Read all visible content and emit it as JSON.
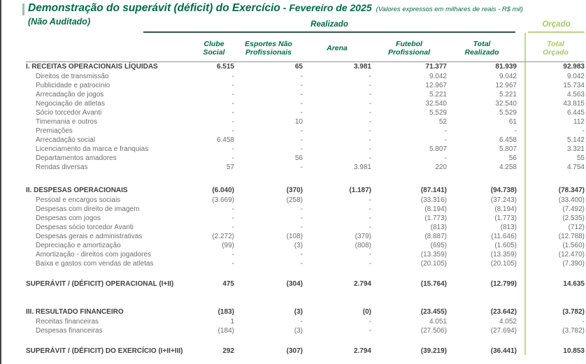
{
  "header": {
    "title": "Demonstração do superávit (déficit) do Exercício",
    "period": " - Fevereiro de 2025",
    "note": "(Valores expressos em milhares de reais - R$ mil)",
    "unaudited": "(Não Auditado)",
    "realizado_label": "Realizado",
    "orcado_label": "Orçado"
  },
  "colors": {
    "green_dark": "#006b45",
    "green_light": "#a6ca65",
    "text_dark": "#3f4042",
    "text_gray": "#6d6e71",
    "line_gray": "#909295"
  },
  "columns": [
    "Clube Social",
    "Esportes Não\nProfissionais",
    "Arena",
    "Futebol\nProfissional",
    "Total\nRealizado",
    "Total\nOrçado"
  ],
  "rows": [
    {
      "type": "section",
      "label": "I. RECEITAS OPERACIONAIS LÍQUIDAS",
      "values": [
        "6.515",
        "65",
        "3.981",
        "71.377",
        "81.939",
        "92.983"
      ]
    },
    {
      "type": "sub",
      "label": "Direitos de transmissão",
      "values": [
        "-",
        "-",
        "-",
        "9.042",
        "9.042",
        "9.042"
      ]
    },
    {
      "type": "sub",
      "label": "Publicidade e patrocinio",
      "values": [
        "-",
        "-",
        "-",
        "12.967",
        "12.967",
        "15.734"
      ]
    },
    {
      "type": "sub",
      "label": "Arrecadação de jogos",
      "values": [
        "-",
        "-",
        "-",
        "5.221",
        "5.221",
        "4.563"
      ]
    },
    {
      "type": "sub",
      "label": "Negociação de atletas",
      "values": [
        "-",
        "-",
        "-",
        "32.540",
        "32.540",
        "43.815"
      ]
    },
    {
      "type": "sub",
      "label": "Sócio torcedor Avanti",
      "values": [
        "-",
        "-",
        "-",
        "5.529",
        "5.529",
        "6.445"
      ]
    },
    {
      "type": "sub",
      "label": "Timemania e outros",
      "values": [
        "-",
        "10",
        "-",
        "52",
        "61",
        "112"
      ]
    },
    {
      "type": "sub",
      "label": "Premiações",
      "values": [
        "-",
        "-",
        "-",
        "-",
        "-",
        "-"
      ]
    },
    {
      "type": "sub",
      "label": "Arrecadação social",
      "values": [
        "6.458",
        "-",
        "-",
        "-",
        "6.458",
        "5.142"
      ]
    },
    {
      "type": "sub",
      "label": "Licenciamento da marca e franquias",
      "values": [
        "-",
        "-",
        "-",
        "5.807",
        "5.807",
        "3.321"
      ]
    },
    {
      "type": "sub",
      "label": "Departamentos amadores",
      "values": [
        "-",
        "56",
        "-",
        "-",
        "56",
        "55"
      ]
    },
    {
      "type": "sub",
      "label": "Rendas diversas",
      "values": [
        "57",
        "-",
        "3.981",
        "220",
        "4.258",
        "4.754"
      ]
    },
    {
      "type": "spacer",
      "h": 20
    },
    {
      "type": "section",
      "label": "II. DESPESAS OPERACIONAIS",
      "values": [
        "(6.040)",
        "(370)",
        "(1.187)",
        "(87.141)",
        "(94.738)",
        "(78.347)"
      ]
    },
    {
      "type": "sub",
      "label": "Pessoal e encargos sociais",
      "values": [
        "(3.669)",
        "(258)",
        "-",
        "(33.316)",
        "(37.243)",
        "(33.400)"
      ]
    },
    {
      "type": "sub",
      "label": "Despesas com direito de imagem",
      "values": [
        "-",
        "-",
        "-",
        "(8.194)",
        "(8.194)",
        "(7.492)"
      ]
    },
    {
      "type": "sub",
      "label": "Despesas com jogos",
      "values": [
        "-",
        "-",
        "-",
        "(1.773)",
        "(1.773)",
        "(2.535)"
      ]
    },
    {
      "type": "sub",
      "label": "Despesas sócio torcedor Avanti",
      "values": [
        "-",
        "-",
        "-",
        "(813)",
        "(813)",
        "(712)"
      ]
    },
    {
      "type": "sub",
      "label": "Despesas gerais e administrativas",
      "values": [
        "(2.272)",
        "(108)",
        "(379)",
        "(8.887)",
        "(11.646)",
        "(12.788)"
      ]
    },
    {
      "type": "sub",
      "label": "Depreciação e amortização",
      "values": [
        "(99)",
        "(3)",
        "(808)",
        "(695)",
        "(1.605)",
        "(1.560)"
      ]
    },
    {
      "type": "sub",
      "label": "Amortização - direitos com jogadores",
      "values": [
        "-",
        "-",
        "-",
        "(13.359)",
        "(13.359)",
        "(12.470)"
      ]
    },
    {
      "type": "sub",
      "label": "Baixa e gastos com vendas de atletas",
      "values": [
        "-",
        "-",
        "-",
        "(20.105)",
        "(20.105)",
        "(7.390)"
      ]
    },
    {
      "type": "spacer",
      "h": 16
    },
    {
      "type": "total",
      "label": "SUPERÁVIT / (DÉFICIT) OPERACIONAL (I+II)",
      "values": [
        "475",
        "(304)",
        "2.794",
        "(15.764)",
        "(12.799)",
        "14.635"
      ]
    },
    {
      "type": "spacer",
      "h": 26
    },
    {
      "type": "section",
      "label": "III. RESULTADO FINANCEIRO",
      "values": [
        "(183)",
        "(3)",
        "(0)",
        "(23.455)",
        "(23.642)",
        "(3.782)"
      ]
    },
    {
      "type": "sub",
      "label": "Receitas financeiras",
      "values": [
        "1",
        "-",
        "-",
        "4.051",
        "4.052",
        "-"
      ]
    },
    {
      "type": "sub",
      "label": "Despesas financeiras",
      "values": [
        "(184)",
        "(3)",
        "-",
        "(27.506)",
        "(27.694)",
        "(3.782)"
      ]
    },
    {
      "type": "spacer",
      "h": 16
    },
    {
      "type": "total",
      "label": "SUPERÁVIT / (DÉFICIT) DO EXERCÍCIO (I+II+III)",
      "values": [
        "292",
        "(307)",
        "2.794",
        "(39.219)",
        "(36.441)",
        "10.853"
      ]
    }
  ]
}
